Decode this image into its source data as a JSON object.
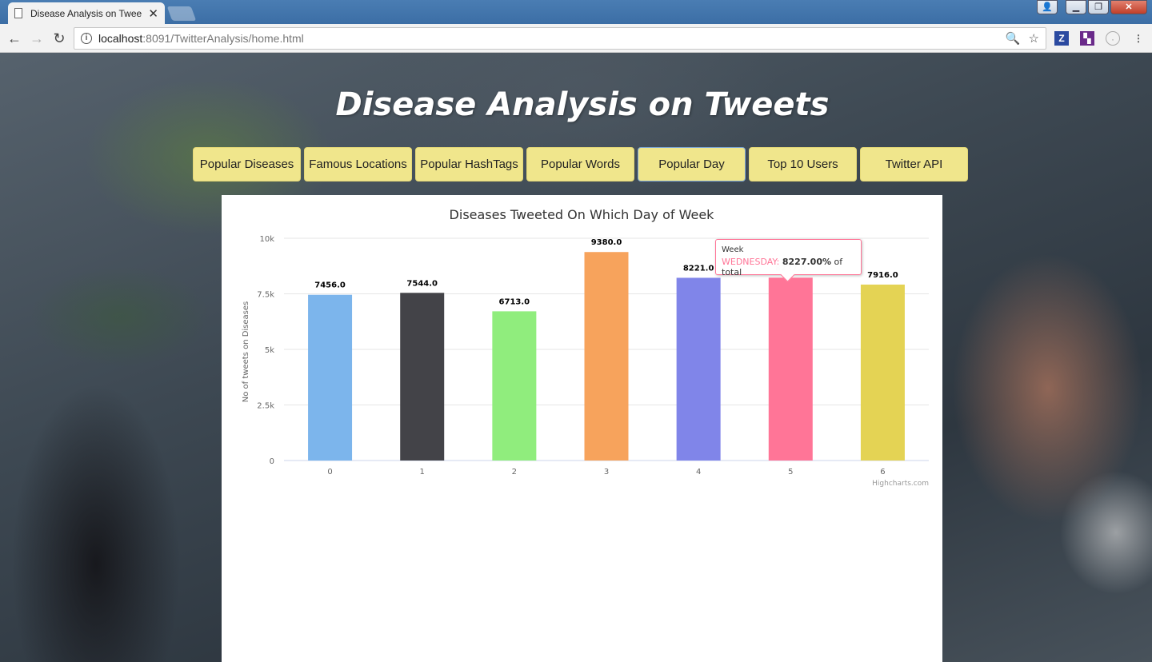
{
  "browser": {
    "tab_title": "Disease Analysis on Twee",
    "tab_close": "✕",
    "url_host": "localhost",
    "url_path": ":8091/TwitterAnalysis/home.html"
  },
  "page": {
    "title": "Disease Analysis on Tweets",
    "nav": [
      {
        "label": "Popular Diseases"
      },
      {
        "label": "Famous Locations"
      },
      {
        "label": "Popular HashTags"
      },
      {
        "label": "Popular Words"
      },
      {
        "label": "Popular Day",
        "active": true
      },
      {
        "label": "Top 10 Users"
      },
      {
        "label": "Twitter API"
      }
    ]
  },
  "chart_data": {
    "type": "bar",
    "title": "Diseases Tweeted On Which Day of Week",
    "xlabel": "",
    "ylabel": "No of tweets on Diseases",
    "categories": [
      "0",
      "1",
      "2",
      "3",
      "4",
      "5",
      "6"
    ],
    "values": [
      7456.0,
      7544.0,
      6713.0,
      9380.0,
      8221.0,
      8227.0,
      7916.0
    ],
    "data_labels": [
      "7456.0",
      "7544.0",
      "6713.0",
      "9380.0",
      "8221.0",
      "8227.0",
      "7916.0"
    ],
    "colors": [
      "#7cb5ec",
      "#434348",
      "#90ed7d",
      "#f7a35c",
      "#8085e9",
      "#f15c80",
      "#e4d354"
    ],
    "hover_color": "#ff7597",
    "ylim": [
      0,
      10000
    ],
    "yticks": [
      0,
      2500,
      5000,
      7500,
      10000
    ],
    "ytick_labels": [
      "0",
      "2.5k",
      "5k",
      "7.5k",
      "10k"
    ],
    "grid": true,
    "credits": "Highcharts.com",
    "tooltip": {
      "header": "Week",
      "category": "WEDNESDAY",
      "value": "8227.00%",
      "suffix": " of total"
    }
  }
}
